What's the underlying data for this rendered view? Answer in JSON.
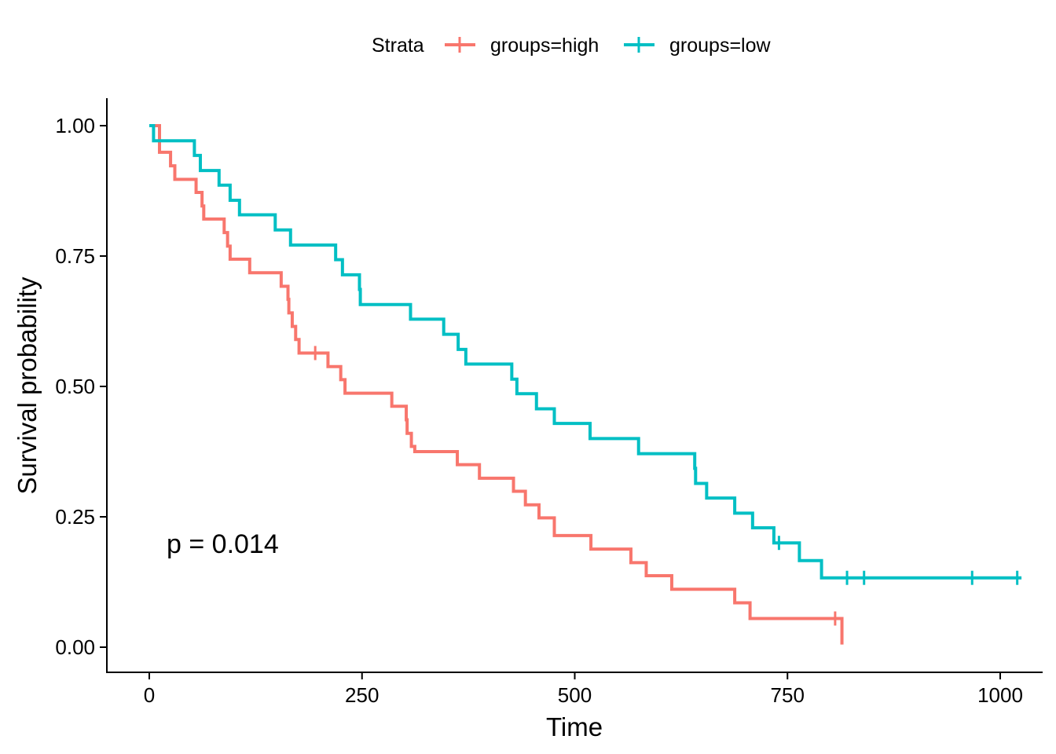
{
  "chart_data": {
    "type": "line",
    "subtype": "kaplan-meier",
    "xlabel": "Time",
    "ylabel": "Survival probability",
    "xlim": [
      -50,
      1050
    ],
    "ylim": [
      -0.05,
      1.05
    ],
    "x_ticks": [
      0,
      250,
      500,
      750,
      1000
    ],
    "x_tick_labels": [
      "0",
      "250",
      "500",
      "750",
      "1000"
    ],
    "y_ticks": [
      0,
      0.25,
      0.5,
      0.75,
      1.0
    ],
    "y_tick_labels": [
      "0.00",
      "0.25",
      "0.50",
      "0.75",
      "1.00"
    ],
    "grid": false,
    "legend": {
      "position": "top",
      "title": "Strata",
      "entries": [
        "groups=high",
        "groups=low"
      ]
    },
    "annotation": "p = 0.014",
    "series": [
      {
        "name": "groups=high",
        "color": "#F8766D",
        "steps": [
          [
            0,
            1.0
          ],
          [
            12,
            0.949
          ],
          [
            25,
            0.923
          ],
          [
            30,
            0.897
          ],
          [
            55,
            0.872
          ],
          [
            62,
            0.846
          ],
          [
            64,
            0.821
          ],
          [
            88,
            0.795
          ],
          [
            92,
            0.769
          ],
          [
            95,
            0.744
          ],
          [
            118,
            0.718
          ],
          [
            155,
            0.692
          ],
          [
            163,
            0.667
          ],
          [
            164,
            0.641
          ],
          [
            168,
            0.615
          ],
          [
            172,
            0.59
          ],
          [
            176,
            0.564
          ],
          [
            210,
            0.538
          ],
          [
            225,
            0.513
          ],
          [
            230,
            0.487
          ],
          [
            285,
            0.462
          ],
          [
            302,
            0.436
          ],
          [
            303,
            0.41
          ],
          [
            308,
            0.385
          ],
          [
            312,
            0.375
          ],
          [
            362,
            0.35
          ],
          [
            388,
            0.324
          ],
          [
            428,
            0.299
          ],
          [
            442,
            0.273
          ],
          [
            458,
            0.248
          ],
          [
            476,
            0.214
          ],
          [
            519,
            0.188
          ],
          [
            566,
            0.162
          ],
          [
            584,
            0.137
          ],
          [
            614,
            0.111
          ],
          [
            688,
            0.085
          ],
          [
            706,
            0.055
          ],
          [
            814,
            0.005
          ]
        ],
        "end_x": 814,
        "censored": [
          [
            195,
            0.564
          ],
          [
            806,
            0.055
          ]
        ]
      },
      {
        "name": "groups=low",
        "color": "#00BFC4",
        "steps": [
          [
            0,
            1.0
          ],
          [
            5,
            0.971
          ],
          [
            53,
            0.943
          ],
          [
            60,
            0.914
          ],
          [
            82,
            0.886
          ],
          [
            95,
            0.857
          ],
          [
            106,
            0.829
          ],
          [
            148,
            0.8
          ],
          [
            166,
            0.771
          ],
          [
            219,
            0.743
          ],
          [
            227,
            0.714
          ],
          [
            247,
            0.686
          ],
          [
            248,
            0.657
          ],
          [
            307,
            0.629
          ],
          [
            346,
            0.6
          ],
          [
            363,
            0.571
          ],
          [
            372,
            0.543
          ],
          [
            426,
            0.514
          ],
          [
            432,
            0.486
          ],
          [
            455,
            0.457
          ],
          [
            476,
            0.429
          ],
          [
            518,
            0.4
          ],
          [
            575,
            0.371
          ],
          [
            641,
            0.343
          ],
          [
            642,
            0.314
          ],
          [
            655,
            0.286
          ],
          [
            688,
            0.257
          ],
          [
            709,
            0.229
          ],
          [
            734,
            0.2
          ],
          [
            764,
            0.166
          ],
          [
            790,
            0.133
          ]
        ],
        "end_x": 1025,
        "censored": [
          [
            740,
            0.2
          ],
          [
            820,
            0.133
          ],
          [
            840,
            0.133
          ],
          [
            967,
            0.133
          ],
          [
            1020,
            0.133
          ]
        ]
      }
    ]
  }
}
